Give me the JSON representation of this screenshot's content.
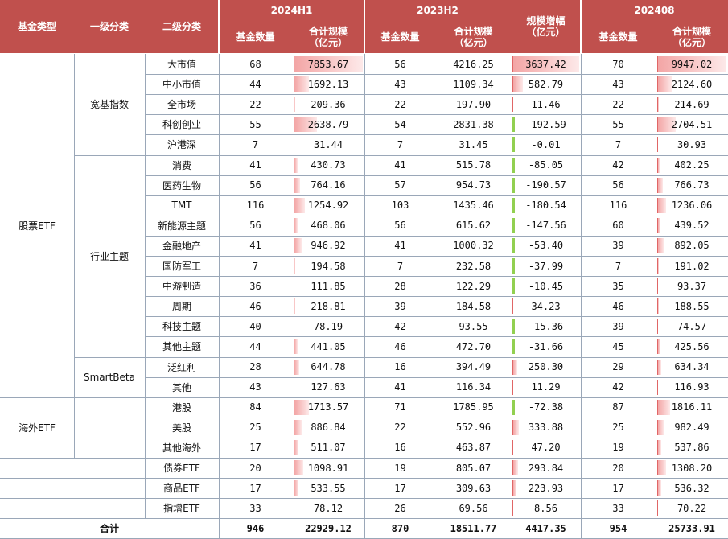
{
  "header": {
    "fund_type": "基金类型",
    "level1": "一级分类",
    "level2": "二级分类",
    "period1": "2024H1",
    "period2": "2023H2",
    "period3": "202408",
    "count": "基金数量",
    "scale": "合计规模\n（亿元）",
    "growth": "规模增幅\n（亿元）"
  },
  "colors": {
    "header_bg": "#C0504D",
    "positive_bar": "#f3a5a5",
    "negative_bar": "#92d050"
  },
  "rows": [
    {
      "l2": "大市值",
      "n1": "68",
      "s1": "7853.67",
      "n2": "56",
      "s2": "4216.25",
      "g": "3637.42",
      "n3": "70",
      "s3": "9947.02"
    },
    {
      "l2": "中小市值",
      "n1": "44",
      "s1": "1692.13",
      "n2": "43",
      "s2": "1109.34",
      "g": "582.79",
      "n3": "43",
      "s3": "2124.60"
    },
    {
      "l2": "全市场",
      "n1": "22",
      "s1": "209.36",
      "n2": "22",
      "s2": "197.90",
      "g": "11.46",
      "n3": "22",
      "s3": "214.69"
    },
    {
      "l2": "科创创业",
      "n1": "55",
      "s1": "2638.79",
      "n2": "54",
      "s2": "2831.38",
      "g": "-192.59",
      "n3": "55",
      "s3": "2704.51"
    },
    {
      "l2": "沪港深",
      "n1": "7",
      "s1": "31.44",
      "n2": "7",
      "s2": "31.45",
      "g": "-0.01",
      "n3": "7",
      "s3": "30.93"
    },
    {
      "l2": "消费",
      "n1": "41",
      "s1": "430.73",
      "n2": "41",
      "s2": "515.78",
      "g": "-85.05",
      "n3": "42",
      "s3": "402.25"
    },
    {
      "l2": "医药生物",
      "n1": "56",
      "s1": "764.16",
      "n2": "57",
      "s2": "954.73",
      "g": "-190.57",
      "n3": "56",
      "s3": "766.73"
    },
    {
      "l2": "TMT",
      "n1": "116",
      "s1": "1254.92",
      "n2": "103",
      "s2": "1435.46",
      "g": "-180.54",
      "n3": "116",
      "s3": "1236.06"
    },
    {
      "l2": "新能源主题",
      "n1": "56",
      "s1": "468.06",
      "n2": "56",
      "s2": "615.62",
      "g": "-147.56",
      "n3": "60",
      "s3": "439.52"
    },
    {
      "l2": "金融地产",
      "n1": "41",
      "s1": "946.92",
      "n2": "41",
      "s2": "1000.32",
      "g": "-53.40",
      "n3": "39",
      "s3": "892.05"
    },
    {
      "l2": "国防军工",
      "n1": "7",
      "s1": "194.58",
      "n2": "7",
      "s2": "232.58",
      "g": "-37.99",
      "n3": "7",
      "s3": "191.02"
    },
    {
      "l2": "中游制造",
      "n1": "36",
      "s1": "111.85",
      "n2": "28",
      "s2": "122.29",
      "g": "-10.45",
      "n3": "35",
      "s3": "93.37"
    },
    {
      "l2": "周期",
      "n1": "46",
      "s1": "218.81",
      "n2": "39",
      "s2": "184.58",
      "g": "34.23",
      "n3": "46",
      "s3": "188.55"
    },
    {
      "l2": "科技主题",
      "n1": "40",
      "s1": "78.19",
      "n2": "42",
      "s2": "93.55",
      "g": "-15.36",
      "n3": "39",
      "s3": "74.57"
    },
    {
      "l2": "其他主题",
      "n1": "44",
      "s1": "441.05",
      "n2": "46",
      "s2": "472.70",
      "g": "-31.66",
      "n3": "45",
      "s3": "425.56"
    },
    {
      "l2": "泛红利",
      "n1": "28",
      "s1": "644.78",
      "n2": "16",
      "s2": "394.49",
      "g": "250.30",
      "n3": "29",
      "s3": "634.34"
    },
    {
      "l2": "其他",
      "n1": "43",
      "s1": "127.63",
      "n2": "41",
      "s2": "116.34",
      "g": "11.29",
      "n3": "42",
      "s3": "116.93"
    },
    {
      "l2": "港股",
      "n1": "84",
      "s1": "1713.57",
      "n2": "71",
      "s2": "1785.95",
      "g": "-72.38",
      "n3": "87",
      "s3": "1816.11"
    },
    {
      "l2": "美股",
      "n1": "25",
      "s1": "886.84",
      "n2": "22",
      "s2": "552.96",
      "g": "333.88",
      "n3": "25",
      "s3": "982.49"
    },
    {
      "l2": "其他海外",
      "n1": "17",
      "s1": "511.07",
      "n2": "16",
      "s2": "463.87",
      "g": "47.20",
      "n3": "19",
      "s3": "537.86"
    },
    {
      "l2": "债券ETF",
      "n1": "20",
      "s1": "1098.91",
      "n2": "19",
      "s2": "805.07",
      "g": "293.84",
      "n3": "20",
      "s3": "1308.20"
    },
    {
      "l2": "商品ETF",
      "n1": "17",
      "s1": "533.55",
      "n2": "17",
      "s2": "309.63",
      "g": "223.93",
      "n3": "17",
      "s3": "536.32"
    },
    {
      "l2": "指增ETF",
      "n1": "33",
      "s1": "78.12",
      "n2": "26",
      "s2": "69.56",
      "g": "8.56",
      "n3": "33",
      "s3": "70.22"
    }
  ],
  "total": {
    "label": "合计",
    "n1": "946",
    "s1": "22929.12",
    "n2": "870",
    "s2": "18511.77",
    "g": "4417.35",
    "n3": "954",
    "s3": "25733.91"
  },
  "groups": {
    "stock": "股票ETF",
    "overseas": "海外ETF",
    "broad": "宽基指数",
    "industry": "行业主题",
    "smartbeta": "SmartBeta"
  }
}
